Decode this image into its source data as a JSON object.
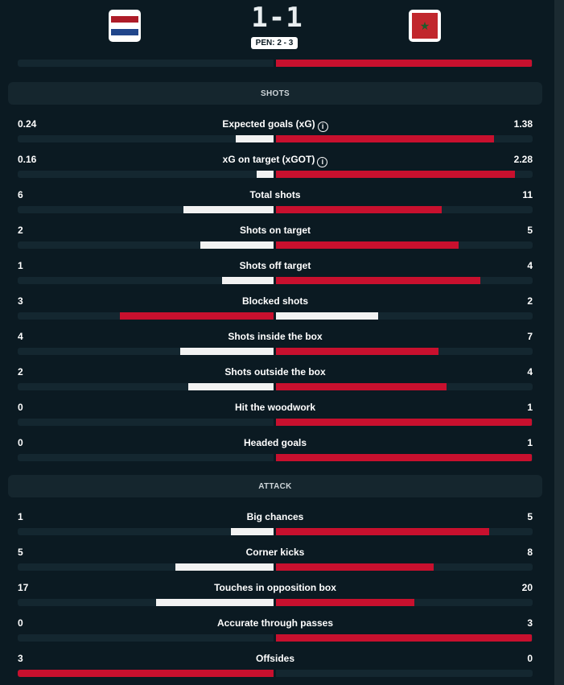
{
  "match": {
    "score": "1-1",
    "penalties": "PEN: 2 - 3",
    "home_flag": "netherlands-flag",
    "away_flag": "morocco-flag"
  },
  "colors": {
    "background": "#0b1a22",
    "winner_bar": "#c8102e",
    "loser_bar": "#f2f2f2",
    "track": "#142730"
  },
  "sections": {
    "shots": "SHOTS",
    "attack": "ATTACK"
  },
  "top_bar": {
    "home": 0,
    "away": 1
  },
  "shots": [
    {
      "label": "Expected goals (xG)",
      "info": true,
      "home": "0.24",
      "away": "1.38",
      "home_share": 0.148,
      "away_share": 0.852,
      "max": 1.62
    },
    {
      "label": "xG on target (xGOT)",
      "info": true,
      "home": "0.16",
      "away": "2.28",
      "home_share": 0.066,
      "away_share": 0.934,
      "max": 2.44
    },
    {
      "label": "Total shots",
      "info": false,
      "home": "6",
      "away": "11",
      "home_share": 0.353,
      "away_share": 0.647
    },
    {
      "label": "Shots on target",
      "info": false,
      "home": "2",
      "away": "5",
      "home_share": 0.286,
      "away_share": 0.714
    },
    {
      "label": "Shots off target",
      "info": false,
      "home": "1",
      "away": "4",
      "home_share": 0.2,
      "away_share": 0.8
    },
    {
      "label": "Blocked shots",
      "info": false,
      "home": "3",
      "away": "2",
      "home_share": 0.6,
      "away_share": 0.4
    },
    {
      "label": "Shots inside the box",
      "info": false,
      "home": "4",
      "away": "7",
      "home_share": 0.364,
      "away_share": 0.636
    },
    {
      "label": "Shots outside the box",
      "info": false,
      "home": "2",
      "away": "4",
      "home_share": 0.333,
      "away_share": 0.667
    },
    {
      "label": "Hit the woodwork",
      "info": false,
      "home": "0",
      "away": "1",
      "home_share": 0,
      "away_share": 1
    },
    {
      "label": "Headed goals",
      "info": false,
      "home": "0",
      "away": "1",
      "home_share": 0,
      "away_share": 1
    }
  ],
  "attack": [
    {
      "label": "Big chances",
      "info": false,
      "home": "1",
      "away": "5",
      "home_share": 0.167,
      "away_share": 0.833
    },
    {
      "label": "Corner kicks",
      "info": false,
      "home": "5",
      "away": "8",
      "home_share": 0.385,
      "away_share": 0.615
    },
    {
      "label": "Touches in opposition box",
      "info": false,
      "home": "17",
      "away": "20",
      "home_share": 0.459,
      "away_share": 0.541
    },
    {
      "label": "Accurate through passes",
      "info": false,
      "home": "0",
      "away": "3",
      "home_share": 0,
      "away_share": 1
    },
    {
      "label": "Offsides",
      "info": false,
      "home": "3",
      "away": "0",
      "home_share": 1,
      "away_share": 0
    }
  ]
}
